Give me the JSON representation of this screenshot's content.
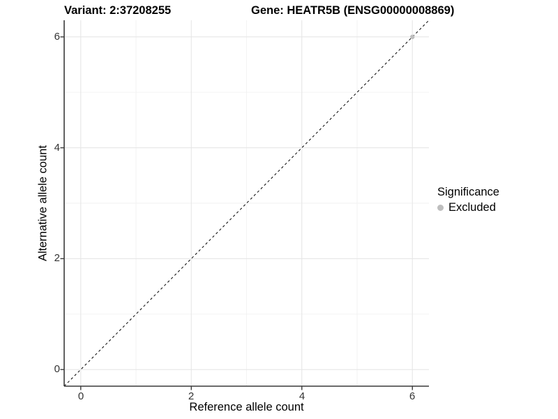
{
  "header": {
    "variant_title": "Variant: 2:37208255",
    "gene_title": "Gene: HEATR5B (ENSG00000008869)"
  },
  "chart_data": {
    "type": "scatter",
    "title": "Variant: 2:37208255   Gene: HEATR5B (ENSG00000008869)",
    "xlabel": "Reference allele count",
    "ylabel": "Alternative allele count",
    "xlim": [
      -0.3,
      6.3
    ],
    "ylim": [
      -0.3,
      6.3
    ],
    "x_ticks_major": [
      0,
      2,
      4,
      6
    ],
    "x_ticks_minor": [
      1,
      3,
      5
    ],
    "y_ticks_major": [
      0,
      2,
      4,
      6
    ],
    "y_ticks_minor": [
      1,
      3,
      5
    ],
    "grid": true,
    "reference_line": {
      "type": "identity",
      "slope": 1,
      "intercept": 0,
      "style": "dashed",
      "color": "#000000"
    },
    "series": [
      {
        "name": "Excluded",
        "color": "#bebebe",
        "points": [
          [
            6,
            6
          ]
        ],
        "point_radius": 3.2
      }
    ],
    "legend": {
      "title": "Significance",
      "position": "right",
      "entries": [
        {
          "label": "Excluded",
          "color": "#bebebe"
        }
      ]
    }
  },
  "colors": {
    "panel_background": "#ffffff",
    "grid_major": "#e6e6e6",
    "grid_minor": "#f2f2f2",
    "axis_line": "#3a3a3a",
    "tick_mark": "#3a3a3a",
    "tick_label": "#333333",
    "point_excluded": "#bebebe",
    "dashed_line": "#000000"
  }
}
